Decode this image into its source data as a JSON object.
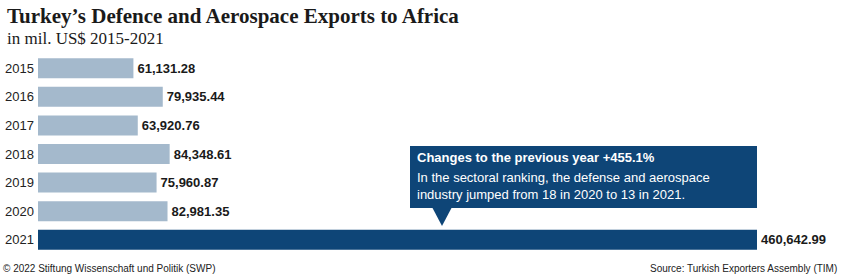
{
  "chart_data": {
    "type": "bar",
    "title": "Turkey’s Defence and Aerospace Exports to Africa",
    "subtitle": "in mil. US$ 2015-2021",
    "categories": [
      "2015",
      "2016",
      "2017",
      "2018",
      "2019",
      "2020",
      "2021"
    ],
    "values": [
      61131.28,
      79935.44,
      63920.76,
      84348.61,
      75960.87,
      82981.35,
      460642.99
    ],
    "value_labels": [
      "61,131.28",
      "79,935.44",
      "63,920.76",
      "84,348.61",
      "75,960.87",
      "82,981.35",
      "460,642.99"
    ],
    "colors": [
      "#a4b9cc",
      "#a4b9cc",
      "#a4b9cc",
      "#a4b9cc",
      "#a4b9cc",
      "#a4b9cc",
      "#0e4577"
    ],
    "orientation": "horizontal",
    "xlim": [
      0,
      460642.99
    ],
    "grid": false,
    "tick_labels": "y",
    "data_labels": true,
    "annotation": {
      "heading": "Changes to the previous year +455.1%",
      "lines": [
        "In the sectoral ranking, the defense and aerospace",
        "industry jumped from 18 in 2020 to 13 in 2021."
      ]
    },
    "footer_left": "© 2022 Stiftung Wissenschaft und Politik (SWP)",
    "footer_right": "Source: Turkish Exporters Assembly (TIM)"
  }
}
